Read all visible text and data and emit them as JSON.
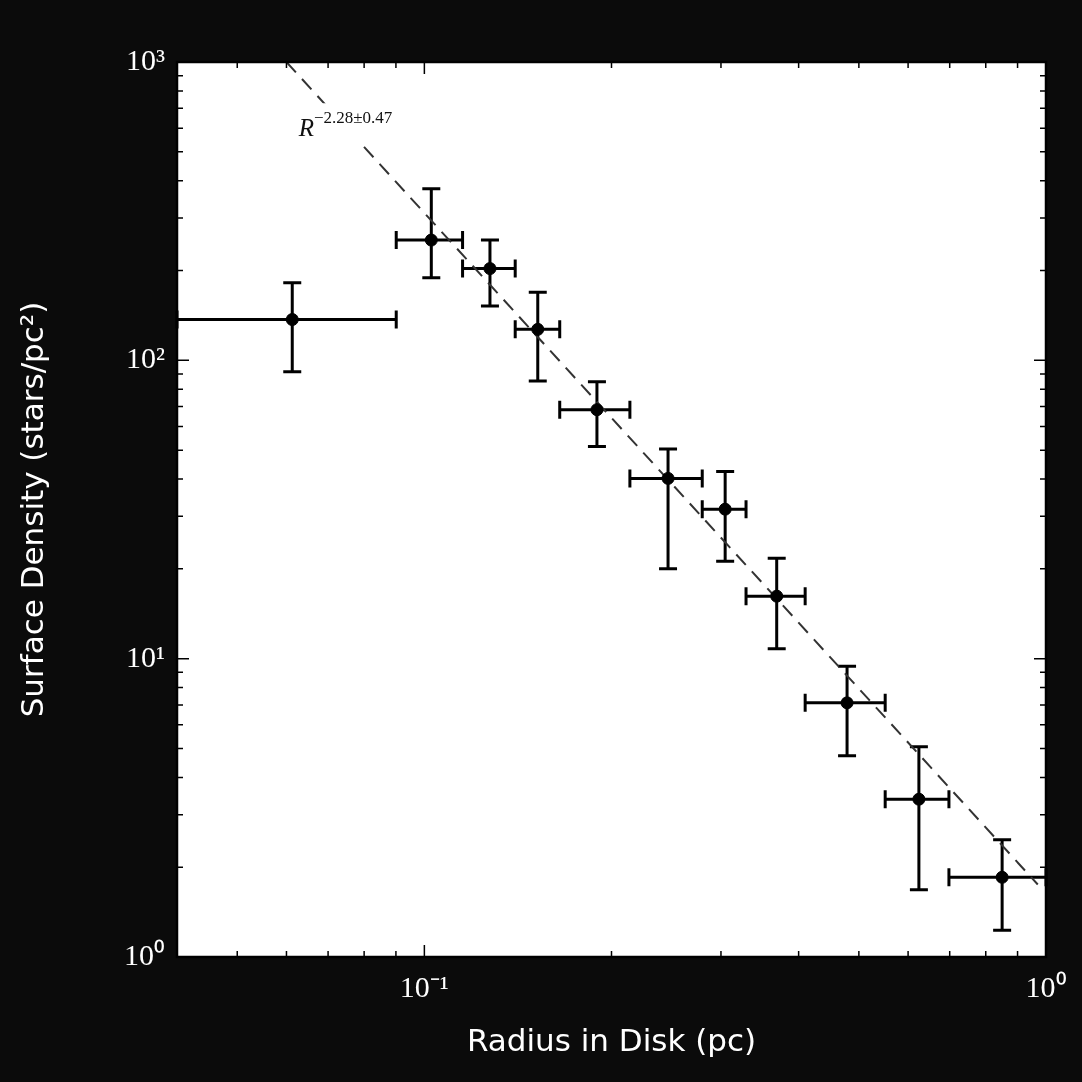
{
  "chart_data": {
    "type": "scatter",
    "xlabel": "Radius in Disk (pc)",
    "ylabel": "Surface Density (stars/pc²)",
    "xlim": [
      0.04,
      1
    ],
    "ylim": [
      1,
      1000
    ],
    "log": "xy",
    "grid": false,
    "legend": false,
    "xticks": [
      {
        "value": 0.04,
        "label": null
      },
      {
        "value": 0.05,
        "label": null
      },
      {
        "value": 0.06,
        "label": null
      },
      {
        "value": 0.07,
        "label": null
      },
      {
        "value": 0.08,
        "label": null
      },
      {
        "value": 0.09,
        "label": null
      },
      {
        "value": 0.1,
        "label": "10⁻¹"
      },
      {
        "value": 0.2,
        "label": null
      },
      {
        "value": 0.3,
        "label": null
      },
      {
        "value": 0.4,
        "label": null
      },
      {
        "value": 0.5,
        "label": null
      },
      {
        "value": 0.6,
        "label": null
      },
      {
        "value": 0.7,
        "label": null
      },
      {
        "value": 0.8,
        "label": null
      },
      {
        "value": 0.9,
        "label": null
      },
      {
        "value": 1,
        "label": "10⁰"
      }
    ],
    "yticks": [
      {
        "value": 1,
        "label": "10⁰"
      },
      {
        "value": 2,
        "label": null
      },
      {
        "value": 3,
        "label": null
      },
      {
        "value": 4,
        "label": null
      },
      {
        "value": 5,
        "label": null
      },
      {
        "value": 6,
        "label": null
      },
      {
        "value": 7,
        "label": null
      },
      {
        "value": 8,
        "label": null
      },
      {
        "value": 9,
        "label": null
      },
      {
        "value": 10,
        "label": "10¹"
      },
      {
        "value": 20,
        "label": null
      },
      {
        "value": 30,
        "label": null
      },
      {
        "value": 40,
        "label": null
      },
      {
        "value": 50,
        "label": null
      },
      {
        "value": 60,
        "label": null
      },
      {
        "value": 70,
        "label": null
      },
      {
        "value": 80,
        "label": null
      },
      {
        "value": 90,
        "label": null
      },
      {
        "value": 100,
        "label": "10²"
      },
      {
        "value": 200,
        "label": null
      },
      {
        "value": 300,
        "label": null
      },
      {
        "value": 400,
        "label": null
      },
      {
        "value": 500,
        "label": null
      },
      {
        "value": 600,
        "label": null
      },
      {
        "value": 700,
        "label": null
      },
      {
        "value": 800,
        "label": null
      },
      {
        "value": 900,
        "label": null
      },
      {
        "value": 1000,
        "label": "10³"
      }
    ],
    "annotations": [
      "R$^{−2.28±0.47}$"
    ],
    "series": [
      {
        "color": "#000000",
        "marker": "circle",
        "x": [
          0.0613,
          0.1026,
          0.1275,
          0.1522,
          0.1895,
          0.2466,
          0.3047,
          0.3688,
          0.4786,
          0.6245,
          0.85
        ],
        "values": [
          137,
          253,
          203,
          127,
          68.3,
          40.2,
          31.7,
          16.2,
          7.11,
          3.38,
          1.85
        ],
        "errors": [
          [
            91.6,
            182
          ],
          [
            189,
            376
          ],
          [
            152,
            253
          ],
          [
            85.2,
            169
          ],
          [
            51.4,
            84.8
          ],
          [
            20.0,
            50.4
          ],
          [
            21.2,
            42.4
          ],
          [
            10.8,
            21.7
          ],
          [
            4.73,
            9.44
          ],
          [
            1.68,
            5.07
          ],
          [
            1.23,
            2.47
          ]
        ],
        "xerrors": [
          [
            0.04,
            0.0901
          ],
          [
            0.0901,
            0.1152
          ],
          [
            0.1152,
            0.14
          ],
          [
            0.14,
            0.1651
          ],
          [
            0.1651,
            0.2141
          ],
          [
            0.2141,
            0.2799
          ],
          [
            0.2799,
            0.3292
          ],
          [
            0.3292,
            0.4098
          ],
          [
            0.4098,
            0.5512
          ],
          [
            0.5512,
            0.698
          ],
          [
            0.698,
            1
          ]
        ]
      },
      {
        "type": "line",
        "color": "#333333",
        "marker": "none",
        "line_style": "dashed",
        "x": [
          0.06,
          0.97
        ],
        "values": [
          1000,
          1.75
        ]
      }
    ]
  }
}
